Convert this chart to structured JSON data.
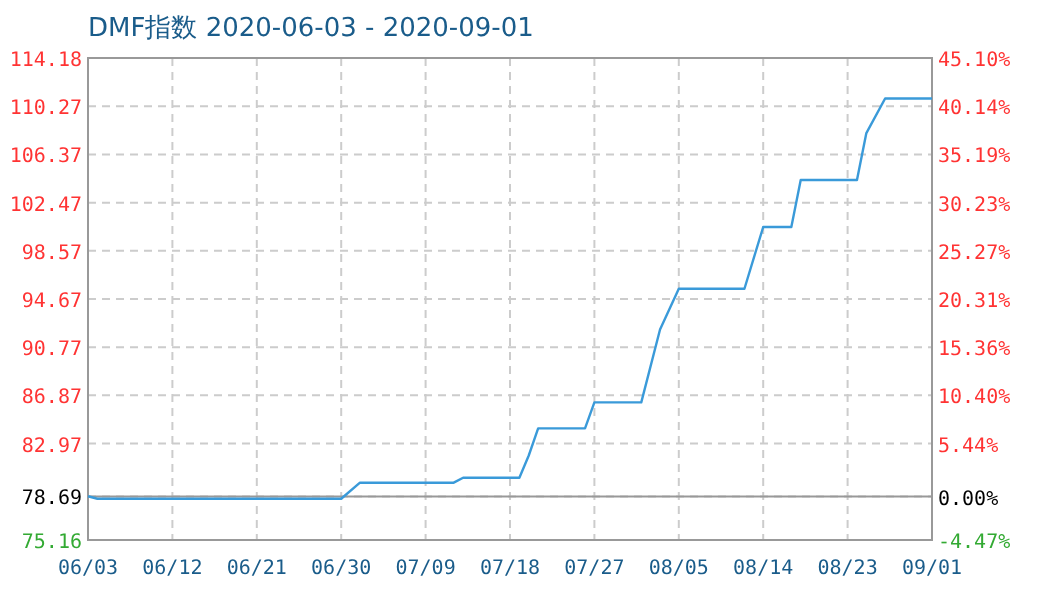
{
  "chart_data": {
    "type": "line",
    "title": "DMF指数 2020-06-03 - 2020-09-01",
    "x": [
      "2020-06-03",
      "2020-06-04",
      "2020-06-30",
      "2020-07-02",
      "2020-07-12",
      "2020-07-13",
      "2020-07-19",
      "2020-07-20",
      "2020-07-21",
      "2020-07-26",
      "2020-07-27",
      "2020-08-01",
      "2020-08-03",
      "2020-08-05",
      "2020-08-12",
      "2020-08-14",
      "2020-08-17",
      "2020-08-18",
      "2020-08-24",
      "2020-08-25",
      "2020-08-27",
      "2020-09-01"
    ],
    "series": [
      {
        "color": "#3a9ad9",
        "values": [
          78.7,
          78.5,
          78.5,
          79.8,
          79.8,
          80.2,
          80.2,
          82.0,
          84.2,
          84.2,
          86.3,
          86.3,
          92.2,
          95.5,
          95.5,
          100.5,
          100.5,
          104.3,
          104.3,
          108.1,
          110.9,
          110.9
        ]
      }
    ],
    "xlim": [
      "2020-06-03",
      "2020-09-01"
    ],
    "xticks": [
      {
        "value": "2020-06-03",
        "label": "06/03"
      },
      {
        "value": "2020-06-12",
        "label": "06/12"
      },
      {
        "value": "2020-06-21",
        "label": "06/21"
      },
      {
        "value": "2020-06-30",
        "label": "06/30"
      },
      {
        "value": "2020-07-09",
        "label": "07/09"
      },
      {
        "value": "2020-07-18",
        "label": "07/18"
      },
      {
        "value": "2020-07-27",
        "label": "07/27"
      },
      {
        "value": "2020-08-05",
        "label": "08/05"
      },
      {
        "value": "2020-08-14",
        "label": "08/14"
      },
      {
        "value": "2020-08-23",
        "label": "08/23"
      },
      {
        "value": "2020-09-01",
        "label": "09/01"
      }
    ],
    "ylim": [
      75.16,
      114.18
    ],
    "yticks": [
      {
        "value": 75.16,
        "label": "75.16"
      },
      {
        "value": 78.69,
        "label": "78.69"
      },
      {
        "value": 82.97,
        "label": "82.97"
      },
      {
        "value": 86.87,
        "label": "86.87"
      },
      {
        "value": 90.77,
        "label": "90.77"
      },
      {
        "value": 94.67,
        "label": "94.67"
      },
      {
        "value": 98.57,
        "label": "98.57"
      },
      {
        "value": 102.47,
        "label": "102.47"
      },
      {
        "value": 106.37,
        "label": "106.37"
      },
      {
        "value": 110.27,
        "label": "110.27"
      },
      {
        "value": 114.18,
        "label": "114.18"
      }
    ],
    "y2lim": [
      -4.47,
      45.1
    ],
    "y2ticks": [
      {
        "value": -4.47,
        "label": "-4.47%"
      },
      {
        "value": 0,
        "label": "0.00%"
      },
      {
        "value": 5.44,
        "label": "5.44%"
      },
      {
        "value": 10.4,
        "label": "10.40%"
      },
      {
        "value": 15.36,
        "label": "15.36%"
      },
      {
        "value": 20.31,
        "label": "20.31%"
      },
      {
        "value": 25.27,
        "label": "25.27%"
      },
      {
        "value": 30.23,
        "label": "30.23%"
      },
      {
        "value": 35.19,
        "label": "35.19%"
      },
      {
        "value": 40.14,
        "label": "40.14%"
      },
      {
        "value": 45.1,
        "label": "45.10%"
      }
    ],
    "ref_lines": [
      {
        "axis": "y",
        "value": 78.69,
        "color": "#999999",
        "line_style": "solid"
      }
    ],
    "grid": true,
    "marker": "none",
    "line_style": "solid"
  }
}
